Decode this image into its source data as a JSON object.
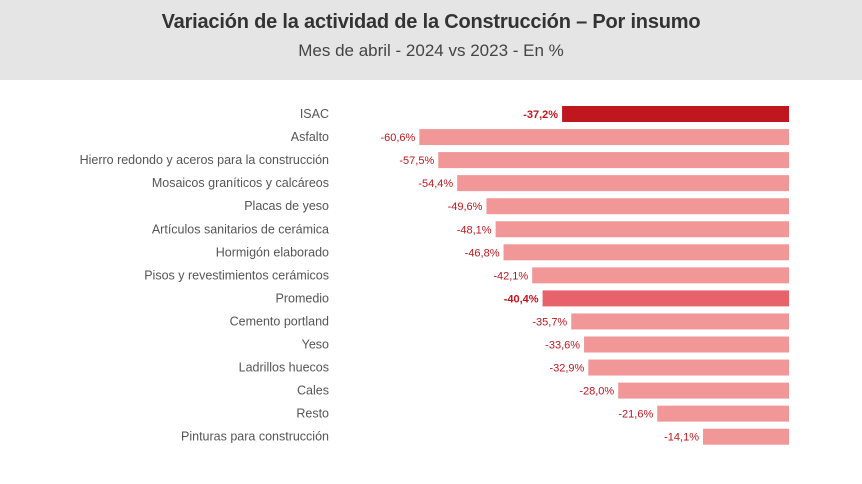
{
  "title": "Variación de la actividad de la Construcción – Por insumo",
  "subtitle": "Mes de abril - 2024 vs 2023 - En %",
  "colors": {
    "highlight_isac": "#c0161d",
    "highlight_promedio": "#e8626b",
    "bar": "#f19797",
    "label": "#c0161d",
    "category_text": "#555555",
    "header_bg": "#e5e5e5"
  },
  "chart_data": {
    "type": "bar",
    "orientation": "horizontal",
    "title": "Variación de la actividad de la Construcción – Por insumo",
    "subtitle": "Mes de abril - 2024 vs 2023 - En %",
    "xlim": [
      -65,
      0
    ],
    "grid": false,
    "categories": [
      "ISAC",
      "Asfalto",
      "Hierro redondo y aceros para la construcción",
      "Mosaicos graníticos y calcáreos",
      "Placas de yeso",
      "Artículos sanitarios de cerámica",
      "Hormigón elaborado",
      "Pisos y revestimientos cerámicos",
      "Promedio",
      "Cemento portland",
      "Yeso",
      "Ladrillos huecos",
      "Cales",
      "Resto",
      "Pinturas para construcción"
    ],
    "values": [
      -37.2,
      -60.6,
      -57.5,
      -54.4,
      -49.6,
      -48.1,
      -46.8,
      -42.1,
      -40.4,
      -35.7,
      -33.6,
      -32.9,
      -28.0,
      -21.6,
      -14.1
    ],
    "value_labels": [
      "-37,2%",
      "-60,6%",
      "-57,5%",
      "-54,4%",
      "-49,6%",
      "-48,1%",
      "-46,8%",
      "-42,1%",
      "-40,4%",
      "-35,7%",
      "-33,6%",
      "-32,9%",
      "-28,0%",
      "-21,6%",
      "-14,1%"
    ],
    "highlighted": [
      "ISAC",
      "Promedio"
    ]
  }
}
